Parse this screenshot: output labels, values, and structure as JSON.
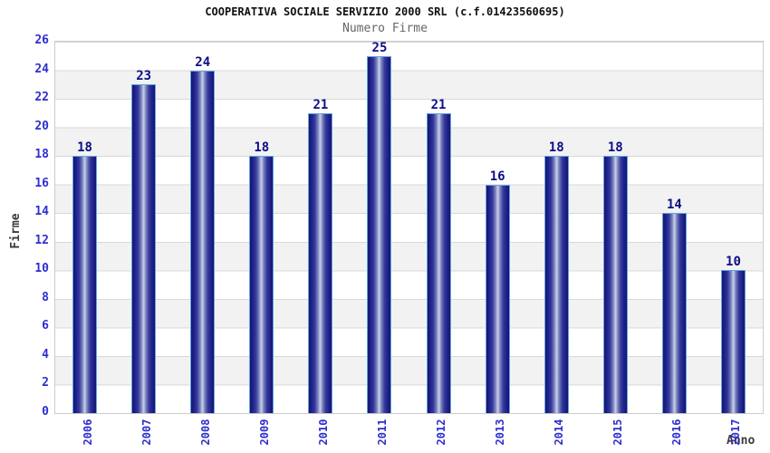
{
  "chart_data": {
    "type": "bar",
    "title": "COOPERATIVA SOCIALE SERVIZIO 2000 SRL (c.f.01423560695)",
    "subtitle": "Numero Firme",
    "xlabel": "Anno",
    "ylabel": "Firme",
    "categories": [
      "2006",
      "2007",
      "2008",
      "2009",
      "2010",
      "2011",
      "2012",
      "2013",
      "2014",
      "2015",
      "2016",
      "2017"
    ],
    "values": [
      18,
      23,
      24,
      18,
      21,
      25,
      21,
      16,
      18,
      18,
      14,
      10
    ],
    "ylim": [
      0,
      26
    ],
    "ytick_step": 2,
    "legend": "none",
    "grid": "horizontal gridlines every 2 units over alternating white/gray bands",
    "colors": {
      "bar_dark": "#15156e",
      "bar_mid": "#7b84bf",
      "bar_light": "#ccd0e9",
      "bar_border": "#63a4e1",
      "tick_label": "#2e2ecf",
      "value_label": "#0d0d87",
      "band_gray": "#f2f2f2",
      "gridline": "#d8d8d8",
      "axis_title": "#3a3a3a",
      "title": "#111111",
      "subtitle": "#666666"
    }
  }
}
